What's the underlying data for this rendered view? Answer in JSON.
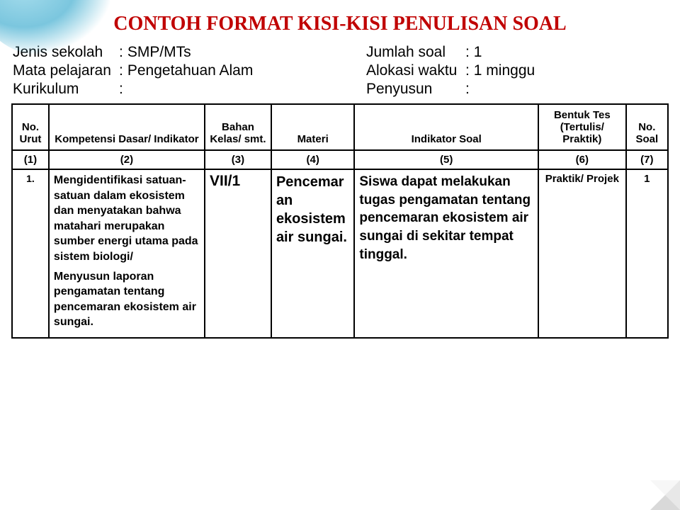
{
  "title": "CONTOH FORMAT KISI-KISI PENULISAN SOAL",
  "meta": {
    "left": [
      {
        "label": "Jenis sekolah",
        "value": "SMP/MTs"
      },
      {
        "label": "Mata pelajaran",
        "value": "Pengetahuan Alam"
      },
      {
        "label": "Kurikulum",
        "value": ""
      }
    ],
    "right": [
      {
        "label": "Jumlah soal",
        "value": "1"
      },
      {
        "label": "Alokasi waktu",
        "value": "1 minggu"
      },
      {
        "label": "Penyusun",
        "value": ""
      }
    ]
  },
  "columns": [
    "No. Urut",
    "Kompetensi Dasar/ Indikator",
    "Bahan Kelas/ smt.",
    "Materi",
    "Indikator Soal",
    "Bentuk Tes (Tertulis/ Praktik)",
    "No. Soal"
  ],
  "numrow": [
    "(1)",
    "(2)",
    "(3)",
    "(4)",
    "(5)",
    "(6)",
    "(7)"
  ],
  "row": {
    "no": "1.",
    "kd1": "Mengidentifikasi satuan-satuan dalam ekosistem dan menyatakan bahwa matahari merupakan sumber energi utama pada sistem biologi/",
    "kd2": "Menyusun laporan pengamatan tentang pencemaran ekosistem air sungai.",
    "smt": "VII/1",
    "materi": "Pencemaran ekosistem air sungai.",
    "indikator": "Siswa dapat melakukan tugas pengamatan tentang pencemaran ekosistem air sungai di sekitar tempat tinggal.",
    "bentuk": "Praktik/ Projek",
    "nosoal": "1"
  },
  "colors": {
    "title": "#c00000",
    "border": "#000000",
    "corner": "#5ab8d6"
  }
}
